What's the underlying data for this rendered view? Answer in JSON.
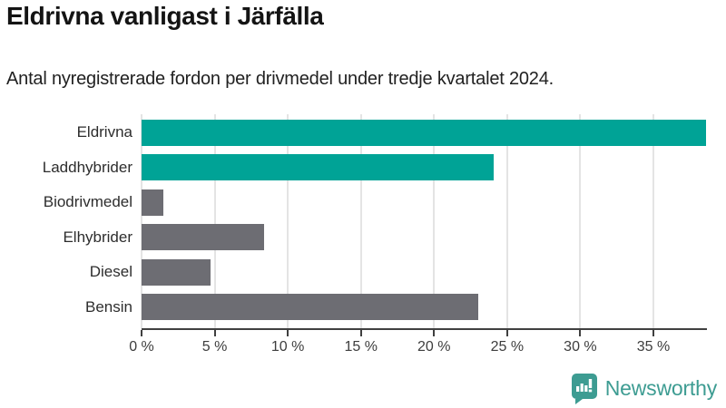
{
  "header": {
    "title": "Eldrivna vanligast i Järfälla",
    "subtitle": "Antal nyregistrerade fordon per drivmedel under tredje kvartalet 2024."
  },
  "chart_data": {
    "type": "bar",
    "orientation": "horizontal",
    "title": "Eldrivna vanligast i Järfälla",
    "subtitle": "Antal nyregistrerade fordon per drivmedel under tredje kvartalet 2024.",
    "categories": [
      "Eldrivna",
      "Laddhybrider",
      "Biodrivmedel",
      "Elhybrider",
      "Diesel",
      "Bensin"
    ],
    "values": [
      38.6,
      24.1,
      1.5,
      8.4,
      4.7,
      23.0
    ],
    "unit": "%",
    "xlabel": "",
    "ylabel": "",
    "xlim": [
      0,
      38.6
    ],
    "ticks": [
      0,
      5,
      10,
      15,
      20,
      25,
      30,
      35
    ],
    "tick_labels": [
      "0 %",
      "5 %",
      "10 %",
      "15 %",
      "20 %",
      "25 %",
      "30 %",
      "35 %"
    ],
    "grid": "vertical-only",
    "legend": "none",
    "bar_color_roles": [
      "highlight",
      "highlight",
      "default",
      "default",
      "default",
      "default"
    ],
    "colors": {
      "highlight": "#00a396",
      "default": "#6d6d73",
      "gridline": "#e4e4e4",
      "axis": "#404040"
    }
  },
  "branding": {
    "logo_text": "Newsworthy",
    "logo_color": "#3d9c92",
    "logo_icon": "newsworthy-speech-bubble-bar-chart-icon"
  }
}
